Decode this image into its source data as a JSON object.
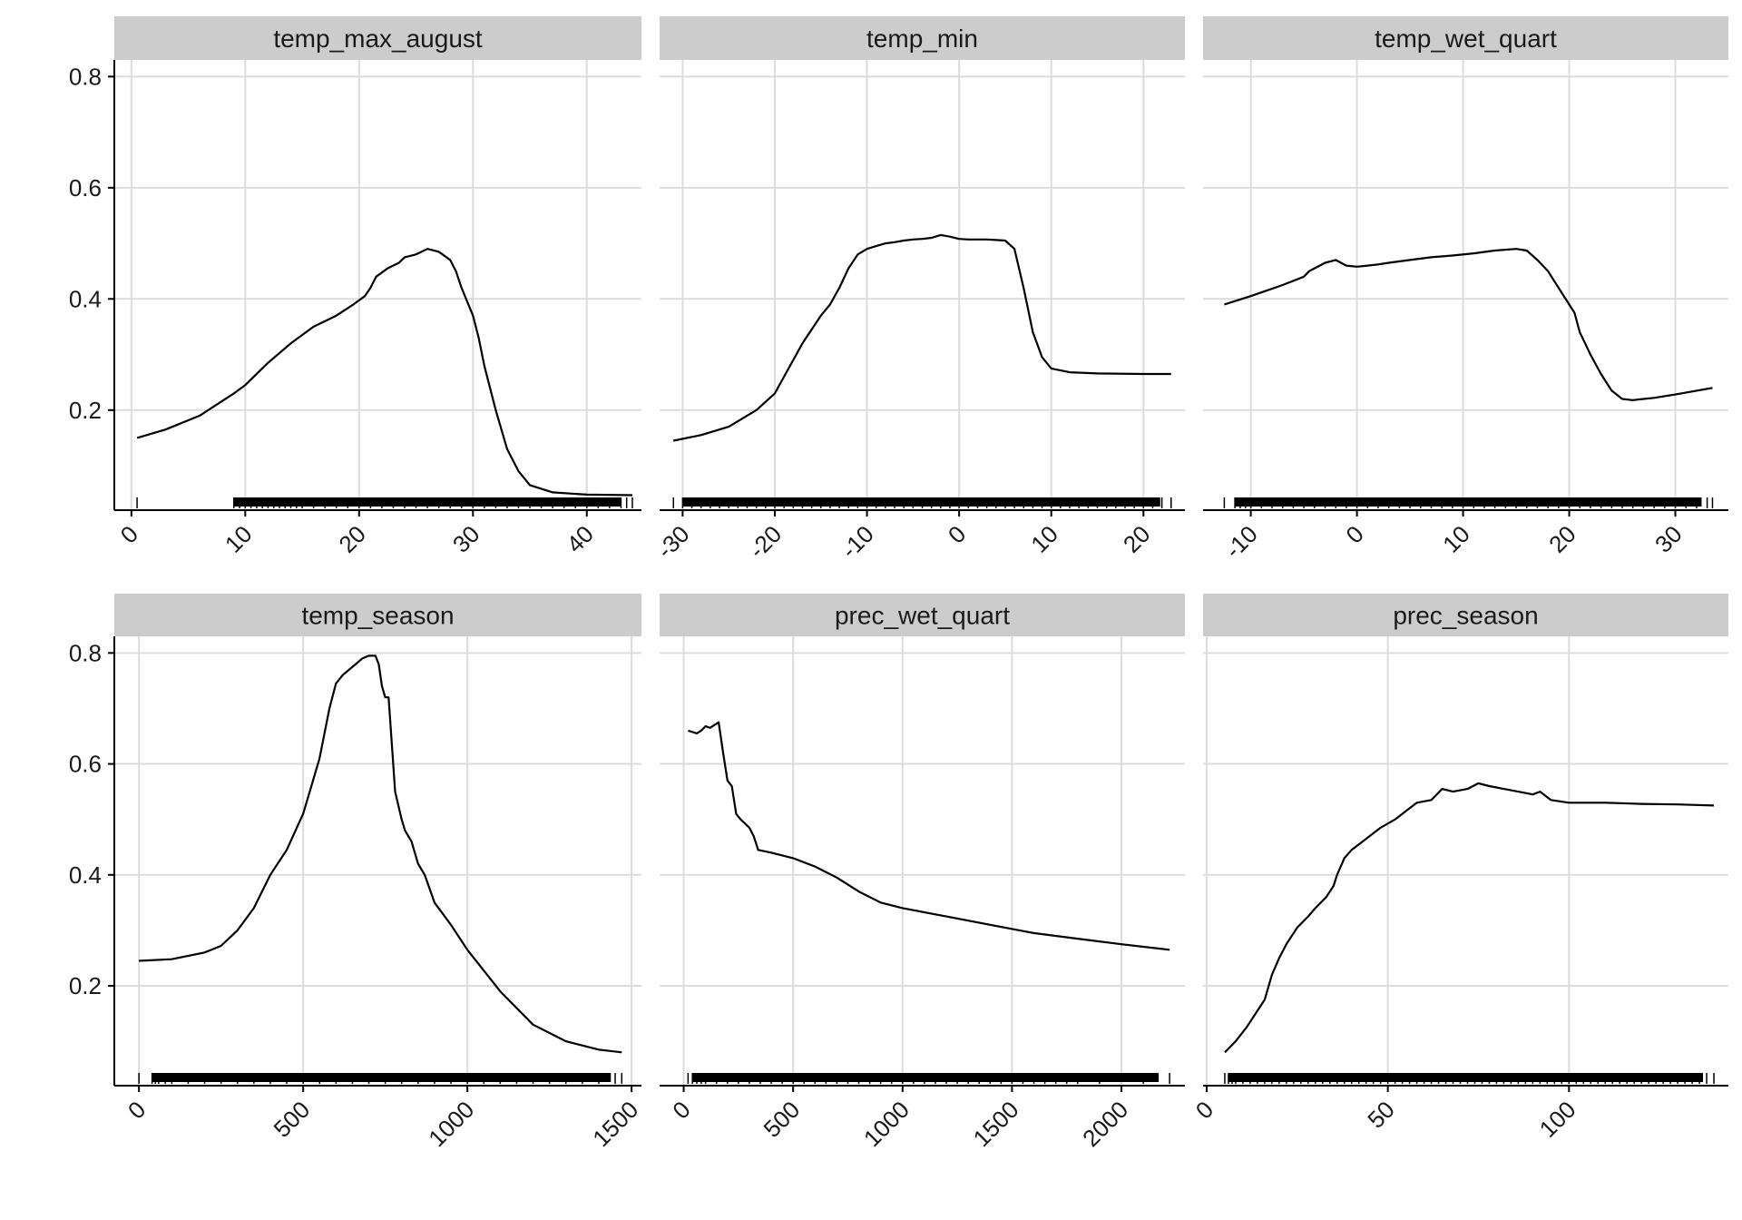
{
  "chart_data": {
    "type": "line",
    "layout": "facet-grid 2x3",
    "grid": true,
    "colors": {
      "line": "#000000",
      "strip_fill": "#cccccc",
      "grid": "#dcdcdc",
      "axis": "#000000",
      "text": "#1a1a1a"
    },
    "y_ticks": [
      0.2,
      0.4,
      0.6,
      0.8
    ],
    "y_tick_labels": [
      "0.2",
      "0.4",
      "0.6",
      "0.8"
    ],
    "ylim": [
      0.02,
      0.83
    ],
    "panels": [
      {
        "title": "temp_max_august",
        "xlim": [
          -1.5,
          44.8
        ],
        "x_ticks": [
          0,
          10,
          20,
          30,
          40
        ],
        "x_tick_labels": [
          "0",
          "10",
          "20",
          "30",
          "40"
        ],
        "x": [
          0.5,
          3,
          6,
          9,
          10,
          12,
          14,
          16,
          18,
          19.5,
          20.5,
          21,
          21.5,
          22.5,
          23.5,
          24,
          25,
          25.5,
          26,
          27,
          28,
          28.5,
          29,
          30,
          30.5,
          31,
          32,
          33,
          34,
          35,
          37,
          40,
          44
        ],
        "y": [
          0.15,
          0.165,
          0.19,
          0.23,
          0.245,
          0.285,
          0.32,
          0.35,
          0.37,
          0.39,
          0.405,
          0.42,
          0.44,
          0.455,
          0.465,
          0.475,
          0.48,
          0.485,
          0.49,
          0.485,
          0.47,
          0.45,
          0.42,
          0.37,
          0.33,
          0.28,
          0.2,
          0.13,
          0.09,
          0.065,
          0.052,
          0.048,
          0.047
        ],
        "rug": [
          0.5,
          9,
          9.5,
          10,
          10.5,
          11,
          11.5,
          12,
          12.5,
          13,
          13.5,
          14,
          14.5,
          15,
          16,
          17,
          18,
          19,
          20,
          21,
          22,
          23,
          24,
          25,
          26,
          27,
          28,
          29,
          30,
          31,
          32,
          33,
          34,
          35,
          36,
          37,
          38,
          39,
          40,
          41,
          42,
          43,
          43.5,
          44
        ]
      },
      {
        "title": "temp_min",
        "xlim": [
          -32.5,
          24.5
        ],
        "x_ticks": [
          -30,
          -20,
          -10,
          0,
          10,
          20
        ],
        "x_tick_labels": [
          "-30",
          "-20",
          "-10",
          "0",
          "10",
          "20"
        ],
        "x": [
          -31,
          -28,
          -25,
          -22,
          -20,
          -19,
          -18,
          -17,
          -16,
          -15,
          -14,
          -13,
          -12,
          -11,
          -10,
          -9,
          -8,
          -7,
          -6,
          -5,
          -4,
          -3,
          -2,
          -1,
          0,
          1,
          2,
          3,
          4,
          5,
          6,
          7,
          8,
          9,
          10,
          12,
          15,
          20,
          23
        ],
        "y": [
          0.145,
          0.155,
          0.17,
          0.2,
          0.23,
          0.26,
          0.29,
          0.32,
          0.345,
          0.37,
          0.39,
          0.42,
          0.455,
          0.48,
          0.49,
          0.495,
          0.5,
          0.502,
          0.505,
          0.507,
          0.508,
          0.51,
          0.515,
          0.512,
          0.508,
          0.507,
          0.507,
          0.507,
          0.506,
          0.505,
          0.49,
          0.42,
          0.34,
          0.295,
          0.275,
          0.268,
          0.266,
          0.265,
          0.265
        ],
        "rug": [
          -31,
          -30,
          -29,
          -28,
          -27,
          -26,
          -25,
          -24,
          -23,
          -22,
          -21,
          -20,
          -19,
          -18,
          -17,
          -16,
          -15,
          -14,
          -13,
          -12,
          -11,
          -10,
          -9,
          -8,
          -7,
          -6,
          -5,
          -4,
          -3,
          -2,
          -1,
          0,
          1,
          2,
          3,
          4,
          5,
          6,
          7,
          8,
          9,
          10,
          11,
          12,
          13,
          14,
          15,
          16,
          17,
          18,
          19,
          20,
          21,
          22,
          23
        ]
      },
      {
        "title": "temp_wet_quart",
        "xlim": [
          -14.5,
          35
        ],
        "x_ticks": [
          -10,
          0,
          10,
          20,
          30
        ],
        "x_tick_labels": [
          "-10",
          "0",
          "10",
          "20",
          "30"
        ],
        "x": [
          -12.5,
          -10,
          -7,
          -5,
          -4.5,
          -4,
          -3,
          -2,
          -1,
          0,
          1,
          2,
          3,
          5,
          7,
          9,
          11,
          13,
          15,
          16,
          17,
          18,
          19,
          20,
          20.5,
          21,
          22,
          23,
          24,
          25,
          26,
          27,
          28,
          30,
          33.5
        ],
        "y": [
          0.39,
          0.405,
          0.425,
          0.44,
          0.45,
          0.455,
          0.465,
          0.47,
          0.46,
          0.458,
          0.46,
          0.462,
          0.465,
          0.47,
          0.475,
          0.478,
          0.482,
          0.487,
          0.49,
          0.487,
          0.47,
          0.45,
          0.42,
          0.39,
          0.375,
          0.34,
          0.3,
          0.265,
          0.235,
          0.22,
          0.218,
          0.22,
          0.222,
          0.228,
          0.24
        ],
        "rug": [
          -12.5,
          -11.5,
          -11,
          -10.5,
          -10,
          -9,
          -8,
          -7,
          -6,
          -5,
          -4,
          -3,
          -2,
          -1,
          0,
          1,
          2,
          3,
          4,
          5,
          6,
          7,
          8,
          9,
          10,
          11,
          12,
          13,
          14,
          15,
          16,
          17,
          18,
          19,
          20,
          21,
          22,
          23,
          24,
          25,
          26,
          27,
          28,
          29,
          30,
          31,
          32,
          33,
          33.5
        ]
      },
      {
        "title": "temp_season",
        "xlim": [
          -75,
          1530
        ],
        "x_ticks": [
          0,
          500,
          1000,
          1500
        ],
        "x_tick_labels": [
          "0",
          "500",
          "1000",
          "1500"
        ],
        "x": [
          0,
          100,
          200,
          250,
          300,
          350,
          400,
          450,
          500,
          520,
          550,
          580,
          600,
          620,
          640,
          660,
          680,
          700,
          720,
          730,
          740,
          750,
          760,
          780,
          800,
          810,
          830,
          850,
          870,
          900,
          950,
          1000,
          1100,
          1200,
          1300,
          1400,
          1470
        ],
        "y": [
          0.245,
          0.248,
          0.26,
          0.272,
          0.3,
          0.34,
          0.4,
          0.445,
          0.51,
          0.55,
          0.61,
          0.7,
          0.745,
          0.76,
          0.77,
          0.78,
          0.79,
          0.795,
          0.795,
          0.78,
          0.74,
          0.72,
          0.72,
          0.55,
          0.5,
          0.48,
          0.46,
          0.42,
          0.4,
          0.35,
          0.31,
          0.265,
          0.19,
          0.13,
          0.1,
          0.085,
          0.08
        ],
        "rug": [
          0,
          40,
          50,
          60,
          80,
          100,
          150,
          200,
          250,
          300,
          350,
          400,
          450,
          500,
          550,
          600,
          650,
          700,
          750,
          800,
          850,
          900,
          950,
          1000,
          1050,
          1100,
          1150,
          1200,
          1250,
          1300,
          1350,
          1400,
          1450,
          1470
        ]
      },
      {
        "title": "prec_wet_quart",
        "xlim": [
          -110,
          2290
        ],
        "x_ticks": [
          0,
          500,
          1000,
          1500,
          2000
        ],
        "x_tick_labels": [
          "0",
          "500",
          "1000",
          "1500",
          "2000"
        ],
        "x": [
          20,
          60,
          80,
          100,
          120,
          140,
          160,
          180,
          200,
          220,
          240,
          260,
          300,
          320,
          340,
          400,
          500,
          600,
          700,
          800,
          900,
          1000,
          1200,
          1400,
          1600,
          1800,
          2000,
          2220
        ],
        "y": [
          0.66,
          0.655,
          0.66,
          0.668,
          0.665,
          0.67,
          0.675,
          0.62,
          0.57,
          0.56,
          0.51,
          0.5,
          0.485,
          0.47,
          0.445,
          0.44,
          0.43,
          0.415,
          0.395,
          0.37,
          0.35,
          0.34,
          0.325,
          0.31,
          0.295,
          0.285,
          0.275,
          0.265
        ],
        "rug": [
          20,
          40,
          60,
          80,
          100,
          150,
          200,
          250,
          300,
          350,
          400,
          450,
          500,
          550,
          600,
          650,
          700,
          750,
          800,
          850,
          900,
          950,
          1000,
          1050,
          1100,
          1150,
          1200,
          1250,
          1300,
          1350,
          1400,
          1450,
          1500,
          1550,
          1600,
          1650,
          1700,
          1750,
          1800,
          1900,
          2100,
          2220
        ]
      },
      {
        "title": "prec_season",
        "xlim": [
          -1,
          144
        ],
        "x_ticks": [
          0,
          50,
          100
        ],
        "x_tick_labels": [
          "0",
          "50",
          "100"
        ],
        "x": [
          5,
          8,
          11,
          14,
          16,
          18,
          20,
          22,
          25,
          28,
          30,
          33,
          35,
          36,
          38,
          40,
          42,
          45,
          48,
          52,
          55,
          58,
          62,
          65,
          68,
          72,
          75,
          78,
          82,
          86,
          90,
          92,
          95,
          100,
          110,
          120,
          130,
          140
        ],
        "y": [
          0.08,
          0.1,
          0.125,
          0.155,
          0.175,
          0.22,
          0.25,
          0.275,
          0.305,
          0.325,
          0.34,
          0.36,
          0.38,
          0.4,
          0.43,
          0.445,
          0.455,
          0.47,
          0.485,
          0.5,
          0.515,
          0.53,
          0.535,
          0.555,
          0.55,
          0.555,
          0.565,
          0.56,
          0.555,
          0.55,
          0.545,
          0.55,
          0.535,
          0.53,
          0.53,
          0.528,
          0.527,
          0.525
        ],
        "rug": [
          5,
          6,
          7,
          8,
          10,
          12,
          14,
          16,
          18,
          20,
          22,
          24,
          26,
          28,
          30,
          32,
          34,
          36,
          38,
          40,
          42,
          44,
          46,
          48,
          50,
          52,
          54,
          56,
          58,
          60,
          62,
          64,
          66,
          68,
          70,
          72,
          74,
          76,
          78,
          80,
          82,
          84,
          86,
          88,
          90,
          92,
          94,
          96,
          98,
          100,
          102,
          104,
          106,
          108,
          110,
          112,
          114,
          116,
          118,
          120,
          122,
          124,
          126,
          128,
          130,
          132,
          134,
          136,
          138,
          140
        ]
      }
    ]
  }
}
